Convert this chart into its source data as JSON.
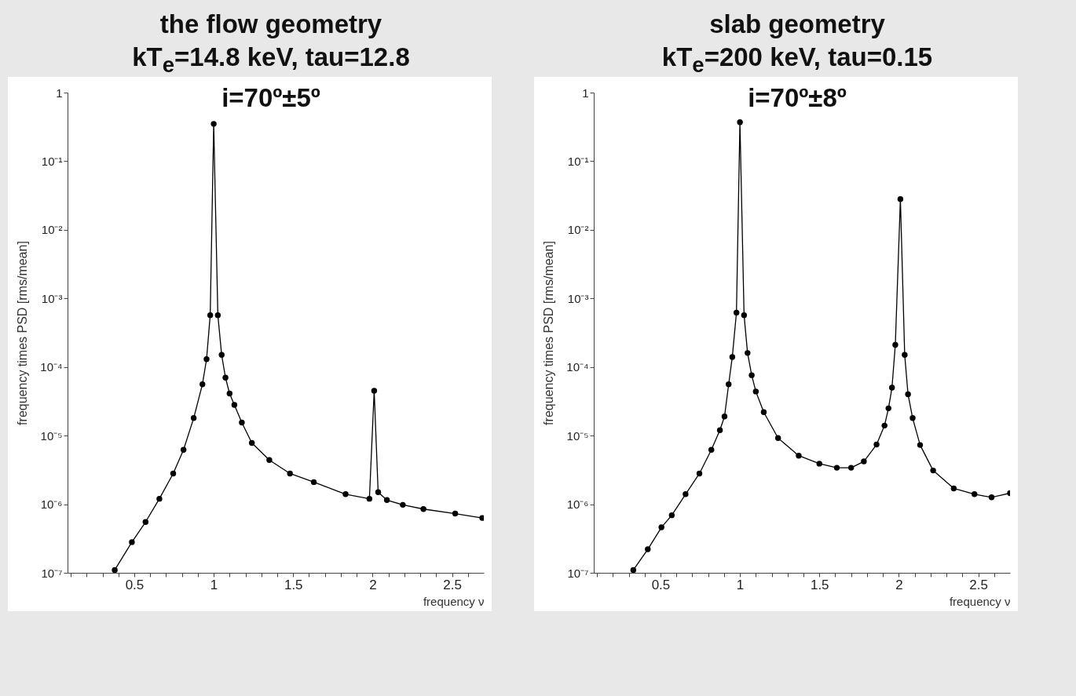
{
  "chart_data": [
    {
      "type": "line",
      "title": "the flow geometry\nkT$_{e}$=14.8 keV, tau=12.8\ni=70º±5º",
      "xlabel": "frequency ν",
      "ylabel": "frequency times PSD [rms/mean]",
      "log": "y",
      "grid": false,
      "marker": "circle",
      "line_style": "solid",
      "xlim": [
        0.08,
        2.7
      ],
      "ylim": [
        1e-07,
        1
      ],
      "xticks": [
        {
          "value": 0.1,
          "label": null
        },
        {
          "value": 0.2,
          "label": null
        },
        {
          "value": 0.3,
          "label": null
        },
        {
          "value": 0.4,
          "label": null
        },
        0.5,
        {
          "value": 0.6,
          "label": null
        },
        {
          "value": 0.7,
          "label": null
        },
        {
          "value": 0.8,
          "label": null
        },
        {
          "value": 0.9,
          "label": null
        },
        1,
        {
          "value": 1.1,
          "label": null
        },
        {
          "value": 1.2,
          "label": null
        },
        {
          "value": 1.3,
          "label": null
        },
        {
          "value": 1.4,
          "label": null
        },
        1.5,
        {
          "value": 1.6,
          "label": null
        },
        {
          "value": 1.7,
          "label": null
        },
        {
          "value": 1.8,
          "label": null
        },
        {
          "value": 1.9,
          "label": null
        },
        2,
        {
          "value": 2.1,
          "label": null
        },
        {
          "value": 2.2,
          "label": null
        },
        {
          "value": 2.3,
          "label": null
        },
        {
          "value": 2.4,
          "label": null
        },
        2.5,
        {
          "value": 2.6,
          "label": null
        }
      ],
      "yticks": [
        {
          "value": 1e-07,
          "label": "10⁻⁷"
        },
        {
          "value": 1e-06,
          "label": "10⁻⁶"
        },
        {
          "value": 1e-05,
          "label": "10⁻⁵"
        },
        {
          "value": 0.0001,
          "label": "10⁻⁴"
        },
        {
          "value": 0.001,
          "label": "10⁻³"
        },
        {
          "value": 0.01,
          "label": "10⁻²"
        },
        {
          "value": 0.1,
          "label": "10⁻¹"
        },
        1
      ],
      "series": [
        {
          "color": "#000000",
          "x": [
            0.377,
            0.485,
            0.571,
            0.658,
            0.745,
            0.81,
            0.874,
            0.929,
            0.955,
            0.978,
            1.0,
            1.026,
            1.05,
            1.074,
            1.1,
            1.13,
            1.177,
            1.24,
            1.35,
            1.48,
            1.63,
            1.83,
            1.98,
            2.01,
            2.035,
            2.09,
            2.19,
            2.32,
            2.52,
            2.69
          ],
          "values": [
            1.1e-07,
            2.8e-07,
            5.5e-07,
            1.2e-06,
            2.8e-06,
            6.2e-06,
            1.8e-05,
            5.6e-05,
            0.00013,
            0.00057,
            0.35,
            0.00057,
            0.00015,
            7e-05,
            4.1e-05,
            2.8e-05,
            1.55e-05,
            7.8e-06,
            4.4e-06,
            2.8e-06,
            2.1e-06,
            1.4e-06,
            1.2e-06,
            4.5e-05,
            1.5e-06,
            1.15e-06,
            9.8e-07,
            8.5e-07,
            7.3e-07,
            6.3e-07
          ]
        }
      ]
    },
    {
      "type": "line",
      "title": "slab geometry\nkT$_{e}$=200 keV, tau=0.15\ni=70º±8º",
      "xlabel": "frequency ν",
      "ylabel": "frequency times PSD [rms/mean]",
      "log": "y",
      "grid": false,
      "marker": "circle",
      "line_style": "solid",
      "xlim": [
        0.08,
        2.7
      ],
      "ylim": [
        1e-07,
        1
      ],
      "xticks": [
        {
          "value": 0.1,
          "label": null
        },
        {
          "value": 0.2,
          "label": null
        },
        {
          "value": 0.3,
          "label": null
        },
        {
          "value": 0.4,
          "label": null
        },
        0.5,
        {
          "value": 0.6,
          "label": null
        },
        {
          "value": 0.7,
          "label": null
        },
        {
          "value": 0.8,
          "label": null
        },
        {
          "value": 0.9,
          "label": null
        },
        1,
        {
          "value": 1.1,
          "label": null
        },
        {
          "value": 1.2,
          "label": null
        },
        {
          "value": 1.3,
          "label": null
        },
        {
          "value": 1.4,
          "label": null
        },
        1.5,
        {
          "value": 1.6,
          "label": null
        },
        {
          "value": 1.7,
          "label": null
        },
        {
          "value": 1.8,
          "label": null
        },
        {
          "value": 1.9,
          "label": null
        },
        2,
        {
          "value": 2.1,
          "label": null
        },
        {
          "value": 2.2,
          "label": null
        },
        {
          "value": 2.3,
          "label": null
        },
        {
          "value": 2.4,
          "label": null
        },
        2.5,
        {
          "value": 2.6,
          "label": null
        }
      ],
      "yticks": [
        {
          "value": 1e-07,
          "label": "10⁻⁷"
        },
        {
          "value": 1e-06,
          "label": "10⁻⁶"
        },
        {
          "value": 1e-05,
          "label": "10⁻⁵"
        },
        {
          "value": 0.0001,
          "label": "10⁻⁴"
        },
        {
          "value": 0.001,
          "label": "10⁻³"
        },
        {
          "value": 0.01,
          "label": "10⁻²"
        },
        {
          "value": 0.1,
          "label": "10⁻¹"
        },
        1
      ],
      "series": [
        {
          "color": "#000000",
          "x": [
            0.329,
            0.42,
            0.506,
            0.571,
            0.658,
            0.745,
            0.82,
            0.874,
            0.903,
            0.929,
            0.952,
            0.978,
            1.0,
            1.026,
            1.048,
            1.074,
            1.1,
            1.15,
            1.24,
            1.37,
            1.5,
            1.61,
            1.7,
            1.78,
            1.86,
            1.91,
            1.935,
            1.957,
            1.978,
            2.01,
            2.037,
            2.058,
            2.087,
            2.134,
            2.216,
            2.346,
            2.476,
            2.584,
            2.7
          ],
          "values": [
            1.1e-07,
            2.2e-07,
            4.6e-07,
            6.9e-07,
            1.4e-06,
            2.8e-06,
            6.2e-06,
            1.2e-05,
            1.9e-05,
            5.6e-05,
            0.00014,
            0.00062,
            0.37,
            0.00057,
            0.00016,
            7.6e-05,
            4.4e-05,
            2.2e-05,
            9.2e-06,
            5.1e-06,
            3.9e-06,
            3.4e-06,
            3.4e-06,
            4.2e-06,
            7.4e-06,
            1.4e-05,
            2.5e-05,
            5e-05,
            0.00021,
            0.028,
            0.00015,
            4e-05,
            1.8e-05,
            7.3e-06,
            3.1e-06,
            1.7e-06,
            1.4e-06,
            1.26e-06,
            1.45e-06
          ]
        }
      ]
    }
  ]
}
